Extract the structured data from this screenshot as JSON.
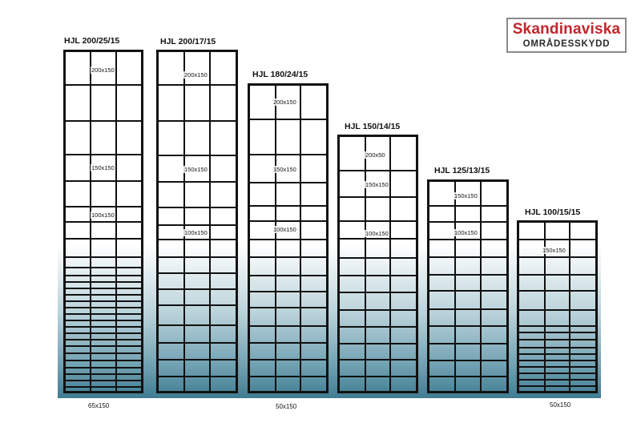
{
  "logo": {
    "line1": "Skandinaviska",
    "line2": "OMRÅDESSKYDD",
    "accent": "#c0262c"
  },
  "panels": [
    {
      "title": "HJL 200/25/15",
      "labels": [
        "200x150",
        "150x150",
        "100x150"
      ]
    },
    {
      "title": "HJL 200/17/15",
      "labels": [
        "200x150",
        "150x150",
        "100x150"
      ]
    },
    {
      "title": "HJL 180/24/15",
      "labels": [
        "200x150",
        "150x150",
        "100x150"
      ]
    },
    {
      "title": "HJL 150/14/15",
      "labels": [
        "200x50",
        "150x150",
        "100x150"
      ]
    },
    {
      "title": "HJL 125/13/15",
      "labels": [
        "150x150",
        "100x150"
      ]
    },
    {
      "title": "HJL 100/15/15",
      "labels": [
        "150x150"
      ]
    }
  ],
  "bottom_labels": [
    "65x150",
    "50x150",
    "50x150"
  ],
  "colors": {
    "wire": "#111111",
    "gradient_bottom": "#3f7c92"
  }
}
